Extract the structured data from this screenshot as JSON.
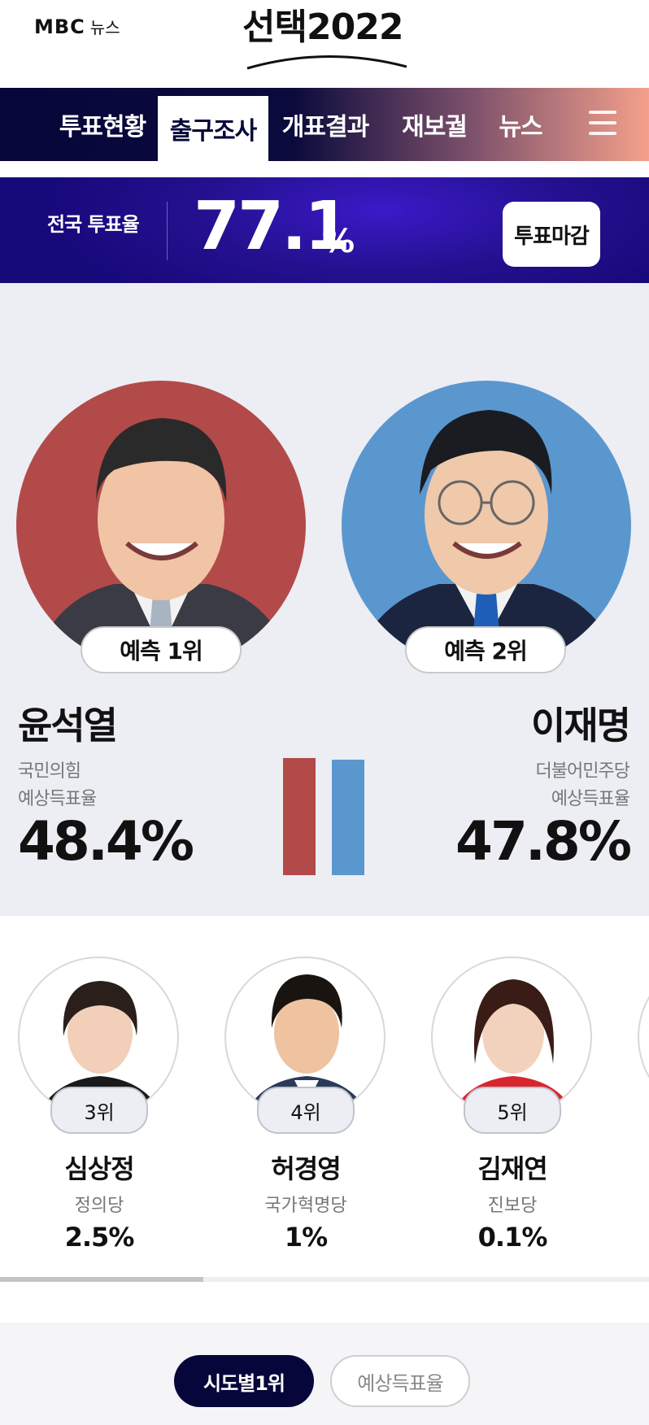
{
  "header": {
    "logo_mbc": "MBC",
    "logo_news": "뉴스",
    "brand_korean": "선택",
    "brand_year": "2022"
  },
  "nav": {
    "items": [
      {
        "label": "투표현황",
        "active": false
      },
      {
        "label": "출구조사",
        "active": true
      },
      {
        "label": "개표결과",
        "active": false
      },
      {
        "label": "재보궐",
        "active": false
      },
      {
        "label": "뉴스",
        "active": false
      }
    ],
    "menu_icon": "hamburger-icon"
  },
  "turnout": {
    "label": "전국 투표율",
    "value": "77.1",
    "unit": "%",
    "status_button": "투표마감"
  },
  "leaders": [
    {
      "rank_label": "예측 1위",
      "name": "윤석열",
      "party": "국민의힘",
      "rate_label": "예상득표율",
      "rate": "48.4%",
      "rate_value": 48.4,
      "color": "#b34a4a"
    },
    {
      "rank_label": "예측 2위",
      "name": "이재명",
      "party": "더불어민주당",
      "rate_label": "예상득표율",
      "rate": "47.8%",
      "rate_value": 47.8,
      "color": "#5b97cf"
    }
  ],
  "others": [
    {
      "rank": "3위",
      "name": "심상정",
      "party": "정의당",
      "rate": "2.5%",
      "accent": "#1a1a1a"
    },
    {
      "rank": "4위",
      "name": "허경영",
      "party": "국가혁명당",
      "rate": "1%",
      "accent": "#2a3a5a"
    },
    {
      "rank": "5위",
      "name": "김재연",
      "party": "진보당",
      "rate": "0.1%",
      "accent": "#d8262e"
    }
  ],
  "bottom_tabs": [
    {
      "label": "시도별1위",
      "active": true
    },
    {
      "label": "예상득표율",
      "active": false
    }
  ]
}
